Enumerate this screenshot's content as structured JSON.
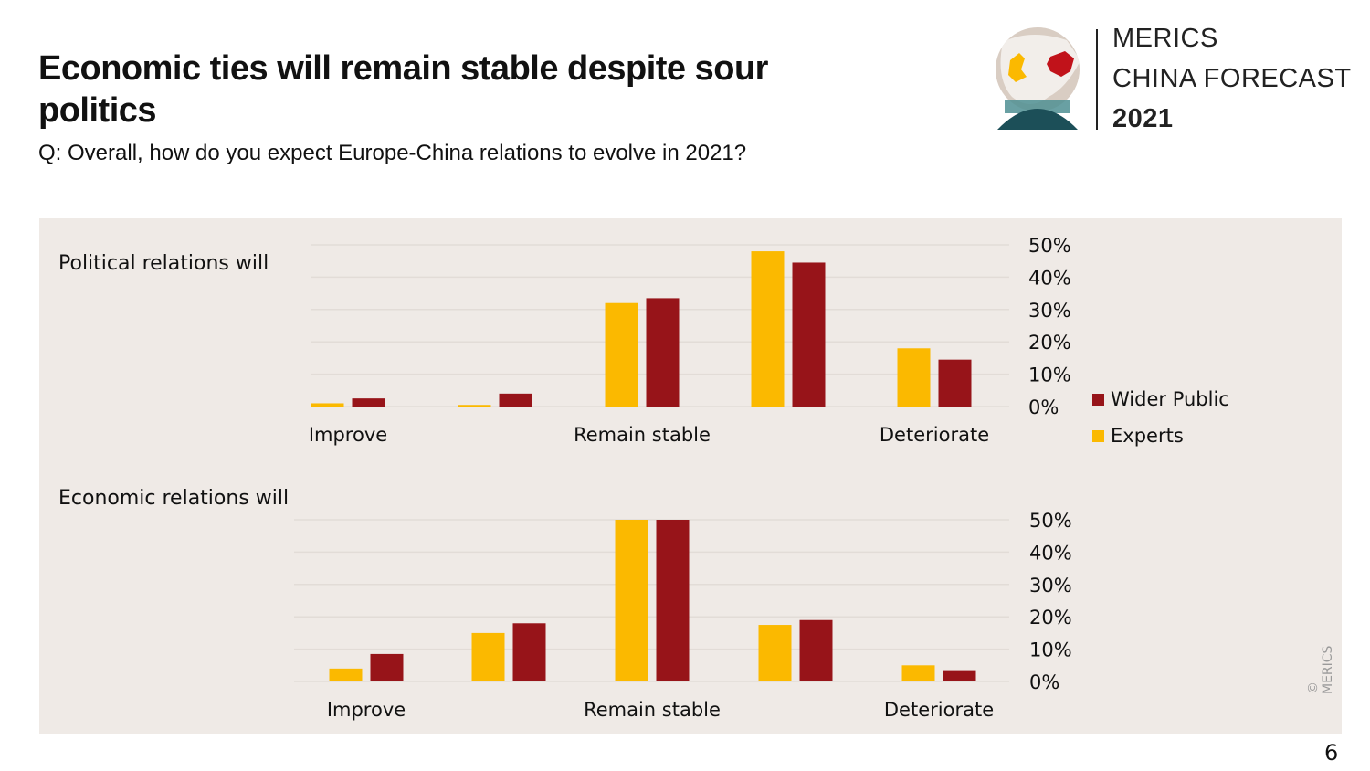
{
  "header": {
    "title": "Economic ties will remain stable despite sour politics",
    "subtitle": "Q: Overall, how do you expect Europe-China relations to evolve in 2021?"
  },
  "logo": {
    "line1": "MERICS",
    "line2": "CHINA FORECAST",
    "line3": "2021",
    "icon": "globe-icon"
  },
  "legend": {
    "items": [
      {
        "label": "Wider Public",
        "color": "#971419"
      },
      {
        "label": "Experts",
        "color": "#fbb900"
      }
    ]
  },
  "copyright": "© MERICS",
  "page_number": "6",
  "colors": {
    "experts": "#fbb900",
    "wider_public": "#971419",
    "panel_bg": "#efeae6",
    "gridline": "#e2dcd7"
  },
  "chart_data": [
    {
      "type": "bar",
      "title": "Political relations will",
      "categories": [
        "Improve",
        "",
        "Remain stable",
        "",
        "Deteriorate"
      ],
      "xlabel": "",
      "ylabel": "",
      "ylim": [
        0,
        50
      ],
      "yticks": [
        "0%",
        "10%",
        "20%",
        "30%",
        "40%",
        "50%"
      ],
      "y_axis_side": "right",
      "grid": true,
      "series": [
        {
          "name": "Experts",
          "values": [
            1,
            0.5,
            32,
            48,
            18
          ]
        },
        {
          "name": "Wider Public",
          "values": [
            2.5,
            4,
            33.5,
            44.5,
            14.5
          ]
        }
      ]
    },
    {
      "type": "bar",
      "title": "Economic relations will",
      "categories": [
        "Improve",
        "",
        "Remain stable",
        "",
        "Deteriorate"
      ],
      "xlabel": "",
      "ylabel": "",
      "ylim": [
        0,
        50
      ],
      "yticks": [
        "0%",
        "10%",
        "20%",
        "30%",
        "40%",
        "50%"
      ],
      "y_axis_side": "right",
      "grid": true,
      "series": [
        {
          "name": "Experts",
          "values": [
            4,
            15,
            50,
            17.5,
            5
          ]
        },
        {
          "name": "Wider Public",
          "values": [
            8.5,
            18,
            50,
            19,
            3.5
          ]
        }
      ]
    }
  ]
}
